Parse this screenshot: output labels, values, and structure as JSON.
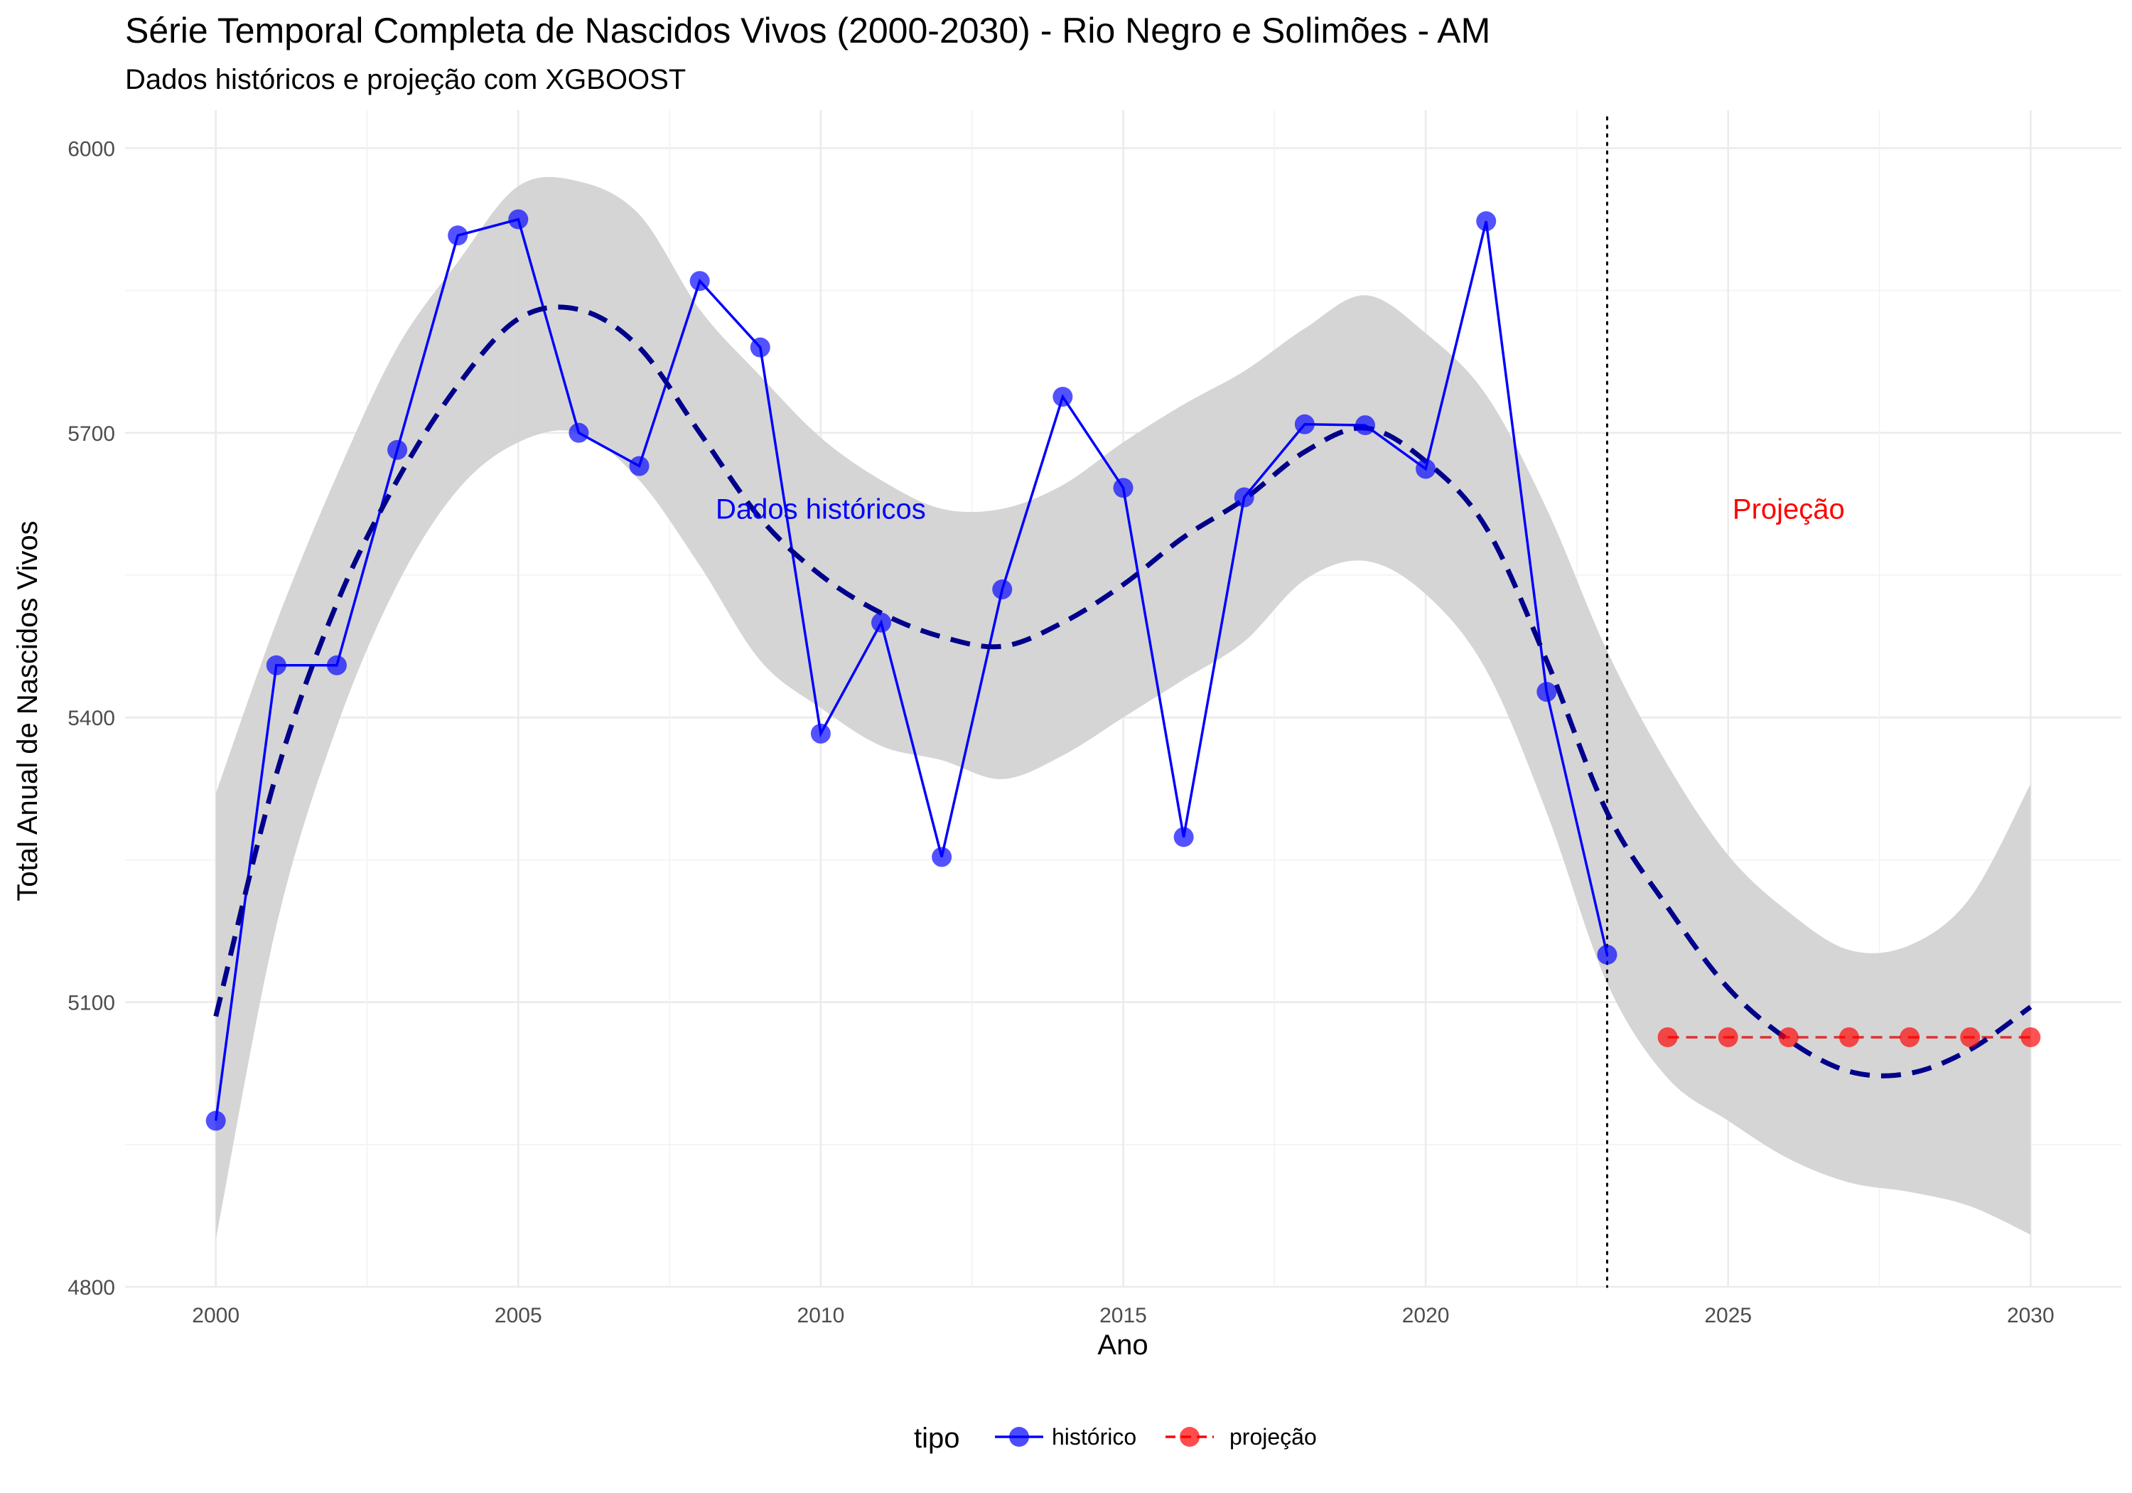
{
  "chart_data": {
    "type": "line",
    "title": "Série Temporal Completa de Nascidos Vivos (2000-2030) -  Rio Negro e Solimões - AM",
    "subtitle": "Dados históricos e projeção com XGBOOST",
    "xlabel": "Ano",
    "ylabel": "Total Anual de Nascidos Vivos",
    "xlim": [
      1998.5,
      2031.5
    ],
    "ylim": [
      4800,
      6040
    ],
    "x_ticks": [
      2000,
      2005,
      2010,
      2015,
      2020,
      2025,
      2030
    ],
    "y_ticks": [
      4800,
      5100,
      5400,
      5700,
      6000
    ],
    "grid": true,
    "legend": {
      "title": "tipo",
      "position": "bottom",
      "entries": [
        "histórico",
        "projeção"
      ]
    },
    "series": [
      {
        "name": "histórico",
        "color": "#0000ff",
        "x": [
          2000,
          2001,
          2002,
          2003,
          2004,
          2005,
          2006,
          2007,
          2008,
          2009,
          2010,
          2011,
          2012,
          2013,
          2014,
          2015,
          2016,
          2017,
          2018,
          2019,
          2020,
          2021,
          2022,
          2023
        ],
        "y": [
          4975,
          5455,
          5455,
          5682,
          5908,
          5925,
          5700,
          5665,
          5860,
          5790,
          5383,
          5500,
          5253,
          5535,
          5738,
          5642,
          5274,
          5632,
          5709,
          5708,
          5662,
          5923,
          5427,
          5150
        ]
      },
      {
        "name": "projeção",
        "color": "#ff0000",
        "x": [
          2024,
          2025,
          2026,
          2027,
          2028,
          2029,
          2030
        ],
        "y": [
          5063,
          5063,
          5063,
          5063,
          5063,
          5063,
          5063
        ]
      }
    ],
    "trend": {
      "color": "#00008b",
      "band_color": "#d3d3d3",
      "x": [
        2000,
        2001,
        2002,
        2003,
        2004,
        2005,
        2006,
        2007,
        2008,
        2009,
        2010,
        2011,
        2012,
        2013,
        2014,
        2015,
        2016,
        2017,
        2018,
        2019,
        2020,
        2021,
        2022,
        2023,
        2024,
        2025,
        2026,
        2027,
        2028,
        2029,
        2030
      ],
      "y": [
        5085,
        5340,
        5520,
        5650,
        5750,
        5820,
        5830,
        5790,
        5700,
        5610,
        5550,
        5510,
        5485,
        5475,
        5500,
        5540,
        5590,
        5630,
        5680,
        5705,
        5670,
        5600,
        5460,
        5300,
        5200,
        5115,
        5060,
        5027,
        5025,
        5050,
        5095
      ],
      "lower": [
        4850,
        5180,
        5390,
        5540,
        5640,
        5690,
        5700,
        5650,
        5560,
        5460,
        5410,
        5370,
        5355,
        5335,
        5360,
        5400,
        5440,
        5480,
        5545,
        5565,
        5530,
        5450,
        5300,
        5120,
        5020,
        4975,
        4935,
        4910,
        4900,
        4885,
        4855
      ],
      "upper": [
        5320,
        5500,
        5655,
        5790,
        5880,
        5960,
        5965,
        5930,
        5830,
        5760,
        5695,
        5650,
        5620,
        5620,
        5645,
        5690,
        5730,
        5765,
        5810,
        5845,
        5805,
        5740,
        5620,
        5470,
        5350,
        5255,
        5195,
        5155,
        5160,
        5210,
        5330
      ]
    },
    "vline_x": 2023,
    "annotations": [
      {
        "text": "Dados históricos",
        "x": 2010,
        "y": 5620,
        "color": "#0000ff"
      },
      {
        "text": "Projeção",
        "x": 2026,
        "y": 5620,
        "color": "#ff0000"
      }
    ]
  }
}
